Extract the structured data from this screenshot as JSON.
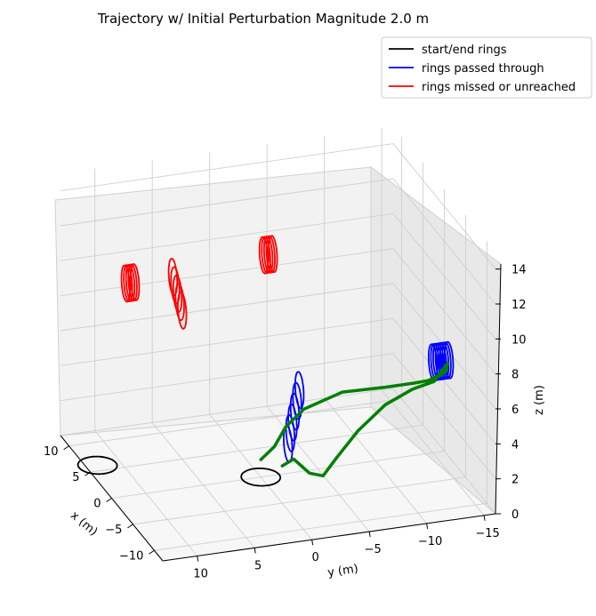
{
  "chart_data": {
    "type": "line3d",
    "title": "Trajectory w/ Initial Perturbation Magnitude 2.0 m",
    "xlabel": "x (m)",
    "ylabel": "y (m)",
    "zlabel": "z (m)",
    "xlim": [
      -12,
      12
    ],
    "ylim": [
      -16,
      13
    ],
    "zlim": [
      0,
      15
    ],
    "x_ticks": [
      10,
      5,
      0,
      -5,
      -10
    ],
    "y_ticks": [
      10,
      5,
      0,
      -5,
      -10,
      -15
    ],
    "z_ticks": [
      0,
      2,
      4,
      6,
      8,
      10,
      12,
      14
    ],
    "grid": true,
    "legend_position": "top-right",
    "legend": [
      {
        "label": "start/end rings",
        "color": "#000000"
      },
      {
        "label": "rings passed through",
        "color": "#0000ff"
      },
      {
        "label": "rings missed or unreached",
        "color": "#ff0000"
      }
    ],
    "ring_groups": [
      {
        "category": "start/end rings",
        "color": "#000000",
        "rings": [
          {
            "center": [
              6,
              12,
              0
            ],
            "radius": 1.6,
            "tilt": "horizontal"
          },
          {
            "center": [
              0,
              0,
              0
            ],
            "radius": 1.6,
            "tilt": "horizontal"
          }
        ]
      },
      {
        "category": "rings passed through",
        "color": "#0000ff",
        "rings": [
          {
            "center": [
              -1,
              -2,
              2
            ],
            "radius": 1.0
          },
          {
            "center": [
              -1,
              -2.2,
              2.6
            ],
            "radius": 1.0
          },
          {
            "center": [
              -1,
              -2.4,
              3.2
            ],
            "radius": 1.0
          },
          {
            "center": [
              -1,
              -2.6,
              3.8
            ],
            "radius": 1.0
          },
          {
            "center": [
              -1,
              -2.8,
              4.4
            ],
            "radius": 1.0
          },
          {
            "center": [
              -1,
              -3.0,
              5.0
            ],
            "radius": 1.0
          },
          {
            "center": [
              -7,
              -12.4,
              7.5
            ],
            "radius": 1.0
          },
          {
            "center": [
              -7,
              -12.6,
              7.5
            ],
            "radius": 1.0
          },
          {
            "center": [
              -7,
              -12.8,
              7.5
            ],
            "radius": 1.0
          },
          {
            "center": [
              -7,
              -13.0,
              7.5
            ],
            "radius": 1.0
          },
          {
            "center": [
              -7,
              -13.2,
              7.5
            ],
            "radius": 1.0
          },
          {
            "center": [
              -7,
              -13.4,
              7.5
            ],
            "radius": 1.0
          },
          {
            "center": [
              -7,
              -13.6,
              7.5
            ],
            "radius": 1.0
          },
          {
            "center": [
              -7,
              -13.8,
              7.5
            ],
            "radius": 1.0
          }
        ]
      },
      {
        "category": "rings missed or unreached",
        "color": "#ff0000",
        "rings": [
          {
            "center": [
              2,
              -1,
              12
            ],
            "radius": 1.0
          },
          {
            "center": [
              2,
              -1.2,
              12
            ],
            "radius": 1.0
          },
          {
            "center": [
              2,
              -1.4,
              12
            ],
            "radius": 1.0
          },
          {
            "center": [
              2,
              -1.6,
              12
            ],
            "radius": 1.0
          },
          {
            "center": [
              2,
              -1.8,
              12
            ],
            "radius": 1.0
          },
          {
            "center": [
              8,
              8.0,
              9.5
            ],
            "radius": 1.0
          },
          {
            "center": [
              8,
              8.2,
              9.5
            ],
            "radius": 1.0
          },
          {
            "center": [
              8,
              8.4,
              9.5
            ],
            "radius": 1.0
          },
          {
            "center": [
              8,
              8.6,
              9.5
            ],
            "radius": 1.0
          },
          {
            "center": [
              8,
              8.8,
              9.5
            ],
            "radius": 1.0
          },
          {
            "center": [
              5,
              5,
              8.5
            ],
            "radius": 1.0
          },
          {
            "center": [
              5,
              5.2,
              9
            ],
            "radius": 1.0
          },
          {
            "center": [
              5,
              5.4,
              9.5
            ],
            "radius": 1.0
          },
          {
            "center": [
              5,
              5.6,
              10
            ],
            "radius": 1.0
          },
          {
            "center": [
              5,
              5.8,
              10.5
            ],
            "radius": 1.0
          }
        ]
      }
    ],
    "trajectory": {
      "color": "#008000",
      "points": [
        [
          -1,
          -1.5,
          0.8
        ],
        [
          -1,
          -2.5,
          1.1
        ],
        [
          -2,
          -3.5,
          0.5
        ],
        [
          -2.5,
          -4.5,
          0.4
        ],
        [
          -3,
          -5.5,
          1.5
        ],
        [
          -4,
          -7,
          3.2
        ],
        [
          -5,
          -9,
          4.8
        ],
        [
          -6,
          -11,
          5.8
        ],
        [
          -7,
          -12.5,
          6.4
        ],
        [
          -7.5,
          -13.5,
          7.5
        ],
        [
          -7.5,
          -13.3,
          7.0
        ],
        [
          -7,
          -12,
          6.5
        ],
        [
          -6.5,
          -11,
          6.3
        ],
        [
          -5,
          -9,
          5.8
        ],
        [
          -3,
          -6,
          5.2
        ],
        [
          -2,
          -3,
          4.2
        ],
        [
          -1,
          -1.8,
          3.0
        ],
        [
          -0.5,
          -1,
          1.8
        ],
        [
          0,
          0,
          1.0
        ]
      ]
    }
  }
}
